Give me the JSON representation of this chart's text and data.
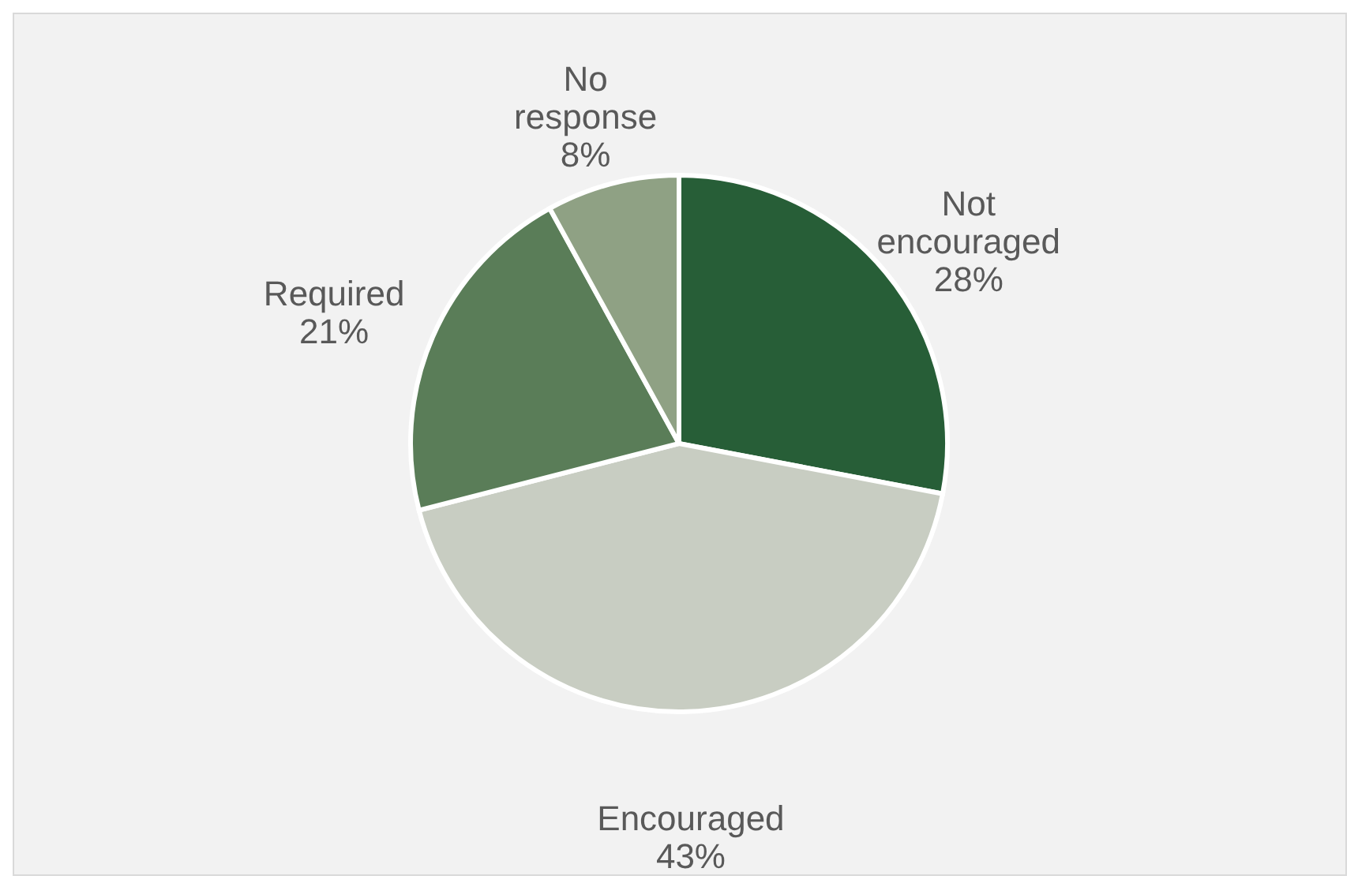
{
  "chart_data": {
    "type": "pie",
    "categories": [
      "Not encouraged",
      "Encouraged",
      "Required",
      "No response"
    ],
    "values": [
      28,
      43,
      21,
      8
    ],
    "colors": [
      "#275e37",
      "#c8cdc2",
      "#5a7d58",
      "#8fa184"
    ],
    "value_labels": [
      "28%",
      "43%",
      "21%",
      "8%"
    ],
    "legend": false
  }
}
